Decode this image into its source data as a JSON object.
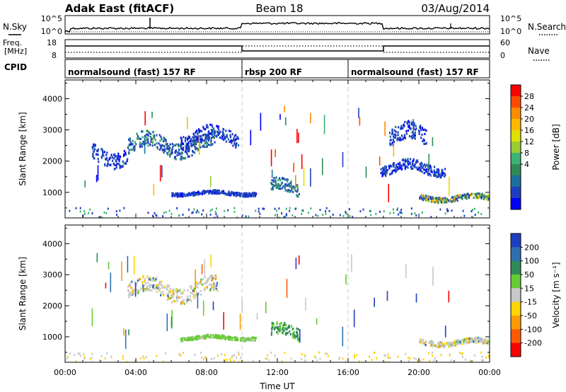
{
  "header": {
    "title": "Adak East (fitACF)",
    "beam": "Beam 18",
    "date": "03/Aug/2014"
  },
  "top_panels": {
    "nsky_label": "N.Sky",
    "nsky_ticks": [
      "10^5",
      "10^0"
    ],
    "nsearch_label": "N.Search",
    "nsearch_ticks": [
      "10^5",
      "10^0"
    ],
    "freq_label_1": "Freq.",
    "freq_label_2": "[MHz]",
    "freq_ticks": [
      "18",
      "8"
    ],
    "nave_label": "Nave",
    "nave_ticks": [
      "60",
      "0"
    ],
    "cpid_label": "CPID",
    "cpid_segments": [
      {
        "label": "normalsound (fast) 157 RF",
        "start_h": 0,
        "end_h": 10
      },
      {
        "label": "rbsp 200 RF",
        "start_h": 10,
        "end_h": 16
      },
      {
        "label": "normalsound (fast) 157 RF",
        "start_h": 16,
        "end_h": 24
      }
    ]
  },
  "chart_data": [
    {
      "type": "heatmap",
      "panel": "power",
      "ylabel": "Slant Range [km]",
      "xlabel": "Time UT",
      "ylim": [
        180,
        4600
      ],
      "xlim_hours": [
        0,
        24
      ],
      "y_ticks": [
        "1000",
        "2000",
        "3000",
        "4000"
      ],
      "x_ticks": [
        "00:00",
        "04:00",
        "08:00",
        "12:00",
        "16:00",
        "20:00",
        "00:00"
      ],
      "colorbar": {
        "label": "Power [dB]",
        "ticks": [
          "28",
          "24",
          "20",
          "16",
          "12",
          "8",
          "4"
        ],
        "colors": [
          "#ff0000",
          "#ff4a00",
          "#ff8c00",
          "#ffb800",
          "#e0e000",
          "#9acd32",
          "#3cb371",
          "#2e8b57",
          "#1e6fa0",
          "#1f3fc0",
          "#0000ff"
        ]
      },
      "scatter_regions": [
        {
          "t_start": 3.5,
          "t_end": 8.6,
          "range_km": [
            2100,
            3000
          ],
          "level": "low-mid"
        },
        {
          "t_start": 1.5,
          "t_end": 3.5,
          "range_km": [
            1800,
            2700
          ],
          "level": "low"
        },
        {
          "t_start": 6.5,
          "t_end": 9.8,
          "range_km": [
            2400,
            3200
          ],
          "level": "low"
        },
        {
          "t_start": 6.0,
          "t_end": 10.8,
          "range_km": [
            900,
            1100
          ],
          "level": "low"
        },
        {
          "t_start": 11.6,
          "t_end": 13.2,
          "range_km": [
            800,
            1500
          ],
          "level": "mid"
        },
        {
          "t_start": 20.0,
          "t_end": 23.9,
          "range_km": [
            700,
            1000
          ],
          "level": "mid-high"
        },
        {
          "t_start": 18.3,
          "t_end": 20.4,
          "range_km": [
            2300,
            3300
          ],
          "level": "low"
        },
        {
          "t_start": 17.8,
          "t_end": 21.5,
          "range_km": [
            1500,
            2100
          ],
          "level": "low"
        }
      ]
    },
    {
      "type": "heatmap",
      "panel": "velocity",
      "ylabel": "Slant Range [km]",
      "xlabel": "Time UT",
      "ylim": [
        180,
        4600
      ],
      "xlim_hours": [
        0,
        24
      ],
      "y_ticks": [
        "1000",
        "2000",
        "3000",
        "4000"
      ],
      "x_ticks": [
        "00:00",
        "04:00",
        "08:00",
        "12:00",
        "16:00",
        "20:00",
        "00:00"
      ],
      "colorbar": {
        "label": "Velocity [m s⁻¹]",
        "ticks": [
          "200",
          "100",
          "50",
          "15",
          "-15",
          "-50",
          "-100",
          "-200"
        ],
        "colors": [
          "#1f3fc0",
          "#2e6fb0",
          "#2e8b57",
          "#66cc33",
          "#c8c8c8",
          "#ffd400",
          "#ff9a00",
          "#ff5a00",
          "#ff0000"
        ]
      },
      "scatter_regions": [
        {
          "t_start": 3.5,
          "t_end": 8.6,
          "range_km": [
            2100,
            3000
          ],
          "level": "near-zero"
        },
        {
          "t_start": 6.5,
          "t_end": 10.8,
          "range_km": [
            900,
            1100
          ],
          "level": "positive-low"
        },
        {
          "t_start": 11.6,
          "t_end": 13.2,
          "range_km": [
            800,
            1500
          ],
          "level": "positive-mid"
        },
        {
          "t_start": 20.0,
          "t_end": 23.9,
          "range_km": [
            700,
            1000
          ],
          "level": "near-zero"
        }
      ]
    }
  ],
  "x_axis_label": "Time UT"
}
